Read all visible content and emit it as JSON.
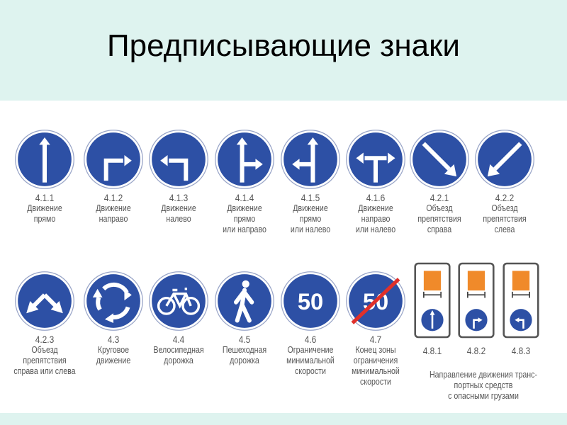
{
  "slide": {
    "title": "Предписывающие знаки"
  },
  "colors": {
    "sign_blue": "#2d50a5",
    "background": "#def3ef",
    "plate_orange": "#f08a2a",
    "end_line_red": "#e0302a"
  },
  "signs_row1": [
    {
      "code": "4.1.1",
      "name": "Движение\nпрямо",
      "icon": "arrow-straight-icon"
    },
    {
      "code": "4.1.2",
      "name": "Движение\nнаправо",
      "icon": "arrow-turn-right-icon"
    },
    {
      "code": "4.1.3",
      "name": "Движение\nналево",
      "icon": "arrow-turn-left-icon"
    },
    {
      "code": "4.1.4",
      "name": "Движение\nпрямо\nили направо",
      "icon": "arrow-straight-or-right-icon"
    },
    {
      "code": "4.1.5",
      "name": "Движение\nпрямо\nили налево",
      "icon": "arrow-straight-or-left-icon"
    },
    {
      "code": "4.1.6",
      "name": "Движение\nнаправо\nили налево",
      "icon": "arrow-right-or-left-icon"
    },
    {
      "code": "4.2.1",
      "name": "Объезд\nпрепятствия\nсправа",
      "icon": "arrow-diagonal-right-icon"
    },
    {
      "code": "4.2.2",
      "name": "Объезд\nпрепятствия\nслева",
      "icon": "arrow-diagonal-left-icon"
    }
  ],
  "signs_row2": [
    {
      "code": "4.2.3",
      "name": "Объезд\nпрепятствия\nсправа или слева",
      "icon": "arrows-diagonal-both-icon"
    },
    {
      "code": "4.3",
      "name": "Круговое\nдвижение",
      "icon": "roundabout-icon"
    },
    {
      "code": "4.4",
      "name": "Велосипедная\nдорожка",
      "icon": "bicycle-icon"
    },
    {
      "code": "4.5",
      "name": "Пешеходная\nдорожка",
      "icon": "pedestrian-icon"
    },
    {
      "code": "4.6",
      "name": "Ограничение\nминимальной\nскорости",
      "icon": "min-speed-icon",
      "value": "50"
    },
    {
      "code": "4.7",
      "name": "Конец зоны\nограничения\nминимальной\nскорости",
      "icon": "end-min-speed-icon",
      "value": "50"
    }
  ],
  "hazard_signs": [
    {
      "code": "4.8.1",
      "icon": "hazard-straight-icon"
    },
    {
      "code": "4.8.2",
      "icon": "hazard-right-icon"
    },
    {
      "code": "4.8.3",
      "icon": "hazard-left-icon"
    }
  ],
  "hazard_caption": "Направление движения транс-\nпортных средств\nс опасными грузами"
}
